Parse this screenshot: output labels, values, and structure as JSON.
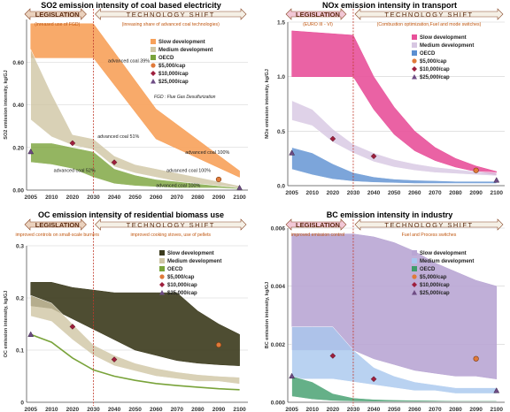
{
  "colors": {
    "slow_orange": "#f7a15a",
    "slow_magenta": "#e8519a",
    "slow_dark": "#3b3a1c",
    "slow_purple": "#b9a6d4",
    "med_tan": "#cfc6a4",
    "med_lilac": "#d7c7e2",
    "med_blue": "#a7c7ee",
    "oecd_green": "#79a33a",
    "oecd_blue": "#5b8fd1",
    "oecd_teal": "#3e9c6a",
    "marker_orange": "#e07a3a",
    "marker_red": "#9e1f3d",
    "marker_purple": "#6e4c84",
    "divider": "#c0392b",
    "legislation_banner": "#ead1bd",
    "shift_banner": "#f5f0e6"
  },
  "chart_data": [
    {
      "type": "area",
      "title": "SO2 emission intensity of coal based electricity",
      "ylabel": "SO2 emission intensity, kg/GJ",
      "x_ticks": [
        "2005",
        "2010",
        "2020",
        "2030",
        "2040",
        "2050",
        "2060",
        "2070",
        "2080",
        "2090",
        "2100"
      ],
      "y_ticks": [
        "0.00",
        "0.20",
        "0.40",
        "0.60"
      ],
      "ylim": [
        0,
        0.8
      ],
      "banner_left": "LEGISLATION",
      "banner_left_sub": "(inreased use of FGD)",
      "banner_right": "TECHNOLOGY SHIFT",
      "banner_right_sub": "(inreasing share of advanced coal technologies)",
      "legend": [
        "Slow development",
        "Medium development",
        "OECD",
        "$5,000/cap",
        "$10,000/cap",
        "$25,000/cap"
      ],
      "notes": [
        "FGD : Flue Gas Desulfurization"
      ],
      "annotations": [
        {
          "text": "advanced coal 39%",
          "x": 2037,
          "y": 0.6
        },
        {
          "text": "advanced coal 51%",
          "x": 2032,
          "y": 0.245
        },
        {
          "text": "advanced coal 100%",
          "x": 2074,
          "y": 0.17
        },
        {
          "text": "advanced coal 100%",
          "x": 2065,
          "y": 0.085
        },
        {
          "text": "advanced coal 52%",
          "x": 2011,
          "y": 0.085
        },
        {
          "text": "advanced coal 100%",
          "x": 2060,
          "y": 0.015
        }
      ],
      "series": [
        {
          "name": "Slow development",
          "band": true,
          "x": [
            2005,
            2030,
            2060,
            2100
          ],
          "lower": [
            0.62,
            0.62,
            0.24,
            0.06
          ],
          "upper": [
            0.78,
            0.78,
            0.38,
            0.09
          ]
        },
        {
          "name": "Medium development",
          "band": true,
          "x": [
            2005,
            2010,
            2020,
            2030,
            2040,
            2050,
            2060,
            2070,
            2080,
            2090,
            2100
          ],
          "lower": [
            0.33,
            0.25,
            0.21,
            0.19,
            0.11,
            0.08,
            0.06,
            0.04,
            0.03,
            0.02,
            0.01
          ],
          "upper": [
            0.66,
            0.45,
            0.26,
            0.24,
            0.16,
            0.12,
            0.1,
            0.08,
            0.06,
            0.04,
            0.02
          ]
        },
        {
          "name": "OECD",
          "band": true,
          "x": [
            2005,
            2010,
            2020,
            2030,
            2040,
            2050,
            2060,
            2070,
            2080,
            2090,
            2100
          ],
          "lower": [
            0.13,
            0.12,
            0.1,
            0.06,
            0.03,
            0.02,
            0.015,
            0.01,
            0.01,
            0.01,
            0.005
          ],
          "upper": [
            0.22,
            0.22,
            0.2,
            0.18,
            0.1,
            0.07,
            0.05,
            0.04,
            0.03,
            0.02,
            0.01
          ]
        },
        {
          "name": "$5,000/cap",
          "points": [
            [
              2090,
              0.05
            ]
          ]
        },
        {
          "name": "$10,000/cap",
          "points": [
            [
              2020,
              0.22
            ],
            [
              2040,
              0.13
            ]
          ]
        },
        {
          "name": "$25,000/cap",
          "points": [
            [
              2005,
              0.18
            ],
            [
              2100,
              0.01
            ]
          ]
        }
      ]
    },
    {
      "type": "area",
      "title": "NOx emission intensity in transport",
      "ylabel": "NOx emission intensity, kg/GJ",
      "x_ticks": [
        "2005",
        "2010",
        "2020",
        "2030",
        "2040",
        "2050",
        "2060",
        "2070",
        "2080",
        "2090",
        "2100"
      ],
      "y_ticks": [
        "0.0",
        "0.5",
        "1.0",
        "1.5"
      ],
      "ylim": [
        0,
        1.5
      ],
      "banner_left": "LEGISLATION",
      "banner_left_sub": "(EURO III - VI)",
      "banner_right": "TECHNOLOGY SHIFT",
      "banner_right_sub": "(Combustion optimization,Fuel and mode switches)",
      "legend": [
        "Slow development",
        "Medium development",
        "OECD",
        "$5,000/cap",
        "$10,000/cap",
        "$25,000/cap"
      ],
      "notes": [],
      "annotations": [],
      "series": [
        {
          "name": "Slow development",
          "band": true,
          "x": [
            2005,
            2030,
            2040,
            2050,
            2060,
            2070,
            2080,
            2090,
            2100
          ],
          "lower": [
            1.0,
            1.0,
            0.7,
            0.47,
            0.32,
            0.23,
            0.17,
            0.13,
            0.1
          ],
          "upper": [
            1.42,
            1.38,
            1.0,
            0.72,
            0.5,
            0.35,
            0.25,
            0.18,
            0.13
          ]
        },
        {
          "name": "Medium development",
          "band": true,
          "x": [
            2005,
            2010,
            2020,
            2030,
            2040,
            2050,
            2060,
            2070,
            2080,
            2090,
            2100
          ],
          "lower": [
            0.6,
            0.55,
            0.4,
            0.3,
            0.22,
            0.17,
            0.14,
            0.12,
            0.11,
            0.1,
            0.09
          ],
          "upper": [
            0.78,
            0.7,
            0.52,
            0.38,
            0.3,
            0.24,
            0.2,
            0.17,
            0.15,
            0.13,
            0.12
          ]
        },
        {
          "name": "OECD",
          "band": true,
          "x": [
            2005,
            2010,
            2020,
            2030,
            2040,
            2050,
            2060,
            2070,
            2080,
            2090,
            2100
          ],
          "lower": [
            0.15,
            0.1,
            0.06,
            0.04,
            0.03,
            0.025,
            0.02,
            0.02,
            0.02,
            0.02,
            0.02
          ],
          "upper": [
            0.35,
            0.3,
            0.2,
            0.12,
            0.08,
            0.06,
            0.05,
            0.045,
            0.04,
            0.04,
            0.04
          ]
        },
        {
          "name": "$5,000/cap",
          "points": [
            [
              2090,
              0.14
            ]
          ]
        },
        {
          "name": "$10,000/cap",
          "points": [
            [
              2020,
              0.43
            ],
            [
              2040,
              0.27
            ]
          ]
        },
        {
          "name": "$25,000/cap",
          "points": [
            [
              2005,
              0.3
            ],
            [
              2100,
              0.05
            ]
          ]
        }
      ]
    },
    {
      "type": "area",
      "title": "OC emission intensity of residential biomass use",
      "ylabel": "OC emission intensity, kg/GJ",
      "x_ticks": [
        "2005",
        "2010",
        "2020",
        "2030",
        "2040",
        "2050",
        "2060",
        "2070",
        "2080",
        "2090",
        "2100"
      ],
      "y_ticks": [
        "0",
        "0.1",
        "0.2",
        "0.3"
      ],
      "ylim": [
        0,
        0.3
      ],
      "banner_left": "LEGISLATION",
      "banner_left_sub": "improved controls on small-scale burners",
      "banner_right": "TECHNOLOGY SHIFT",
      "banner_right_sub": "improved cooking stoves, use of pellets",
      "legend": [
        "Slow development",
        "Medium development",
        "OECD",
        "$5,000/cap",
        "$10,000/cap",
        "$25,000/cap"
      ],
      "notes": [],
      "annotations": [],
      "series": [
        {
          "name": "Slow development",
          "band": true,
          "x": [
            2005,
            2010,
            2020,
            2030,
            2040,
            2050,
            2060,
            2070,
            2080,
            2090,
            2100
          ],
          "lower": [
            0.185,
            0.18,
            0.16,
            0.14,
            0.12,
            0.1,
            0.09,
            0.08,
            0.075,
            0.072,
            0.07
          ],
          "upper": [
            0.23,
            0.23,
            0.22,
            0.215,
            0.21,
            0.21,
            0.21,
            0.21,
            0.175,
            0.15,
            0.13
          ]
        },
        {
          "name": "Medium development",
          "band": true,
          "x": [
            2005,
            2010,
            2020,
            2030,
            2040,
            2050,
            2060,
            2070,
            2080,
            2090,
            2100
          ],
          "lower": [
            0.165,
            0.155,
            0.12,
            0.09,
            0.07,
            0.06,
            0.05,
            0.045,
            0.04,
            0.04,
            0.035
          ],
          "upper": [
            0.205,
            0.19,
            0.15,
            0.11,
            0.09,
            0.075,
            0.065,
            0.058,
            0.053,
            0.05,
            0.048
          ]
        },
        {
          "name": "OECD",
          "line": true,
          "x": [
            2005,
            2010,
            2020,
            2030,
            2040,
            2050,
            2060,
            2070,
            2080,
            2090,
            2100
          ],
          "y": [
            0.13,
            0.115,
            0.085,
            0.062,
            0.05,
            0.042,
            0.036,
            0.032,
            0.029,
            0.026,
            0.024
          ]
        },
        {
          "name": "$5,000/cap",
          "points": [
            [
              2090,
              0.11
            ]
          ]
        },
        {
          "name": "$10,000/cap",
          "points": [
            [
              2020,
              0.145
            ],
            [
              2040,
              0.082
            ]
          ]
        },
        {
          "name": "$25,000/cap",
          "points": [
            [
              2005,
              0.13
            ]
          ]
        }
      ]
    },
    {
      "type": "area",
      "title": "BC emission intensity in industry",
      "ylabel": "BC emission intensity, kg/GJ",
      "x_ticks": [
        "2005",
        "2010",
        "2020",
        "2030",
        "2040",
        "2050",
        "2060",
        "2070",
        "2080",
        "2090",
        "2100"
      ],
      "y_ticks": [
        "0.000",
        "0.002",
        "0.004",
        "0.006"
      ],
      "ylim": [
        0,
        0.006
      ],
      "banner_left": "LEGISLATION",
      "banner_left_sub": "improved emission control",
      "banner_right": "TECHNOLOGY SHIFT",
      "banner_right_sub": "Fuel and Process switches",
      "legend": [
        "Slow development",
        "Medium development",
        "OECD",
        "$5,000/cap",
        "$10,000/cap",
        "$25,000/cap"
      ],
      "notes": [],
      "annotations": [],
      "series": [
        {
          "name": "Slow development",
          "band": true,
          "x": [
            2005,
            2030,
            2040,
            2050,
            2060,
            2070,
            2080,
            2090,
            2100
          ],
          "lower": [
            0.0018,
            0.0018,
            0.0015,
            0.0013,
            0.0011,
            0.001,
            0.0009,
            0.0009,
            0.0008
          ],
          "upper": [
            0.0058,
            0.0058,
            0.0057,
            0.0055,
            0.0052,
            0.0048,
            0.0045,
            0.0042,
            0.004
          ]
        },
        {
          "name": "Medium development",
          "band": true,
          "x": [
            2005,
            2010,
            2020,
            2030,
            2040,
            2050,
            2060,
            2070,
            2080,
            2090,
            2100
          ],
          "lower": [
            0.0008,
            0.0008,
            0.0008,
            0.0007,
            0.0006,
            0.0005,
            0.0004,
            0.0004,
            0.0003,
            0.0003,
            0.0003
          ],
          "upper": [
            0.0026,
            0.0026,
            0.0026,
            0.0018,
            0.0012,
            0.0009,
            0.0007,
            0.0006,
            0.0005,
            0.0005,
            0.0005
          ]
        },
        {
          "name": "OECD",
          "band": true,
          "x": [
            2005,
            2010,
            2020,
            2030,
            2040,
            2050,
            2060,
            2070,
            2080,
            2090,
            2100
          ],
          "lower": [
            0.0002,
            0.0001,
            5e-05,
            3e-05,
            2e-05,
            2e-05,
            2e-05,
            2e-05,
            2e-05,
            2e-05,
            2e-05
          ],
          "upper": [
            0.0009,
            0.0007,
            0.0003,
            0.00015,
            0.0001,
            8e-05,
            7e-05,
            6e-05,
            5e-05,
            5e-05,
            5e-05
          ]
        },
        {
          "name": "$5,000/cap",
          "points": [
            [
              2090,
              0.0015
            ]
          ]
        },
        {
          "name": "$10,000/cap",
          "points": [
            [
              2020,
              0.0016
            ],
            [
              2040,
              0.0008
            ]
          ]
        },
        {
          "name": "$25,000/cap",
          "points": [
            [
              2005,
              0.0009
            ],
            [
              2100,
              0.0004
            ]
          ]
        }
      ]
    }
  ]
}
